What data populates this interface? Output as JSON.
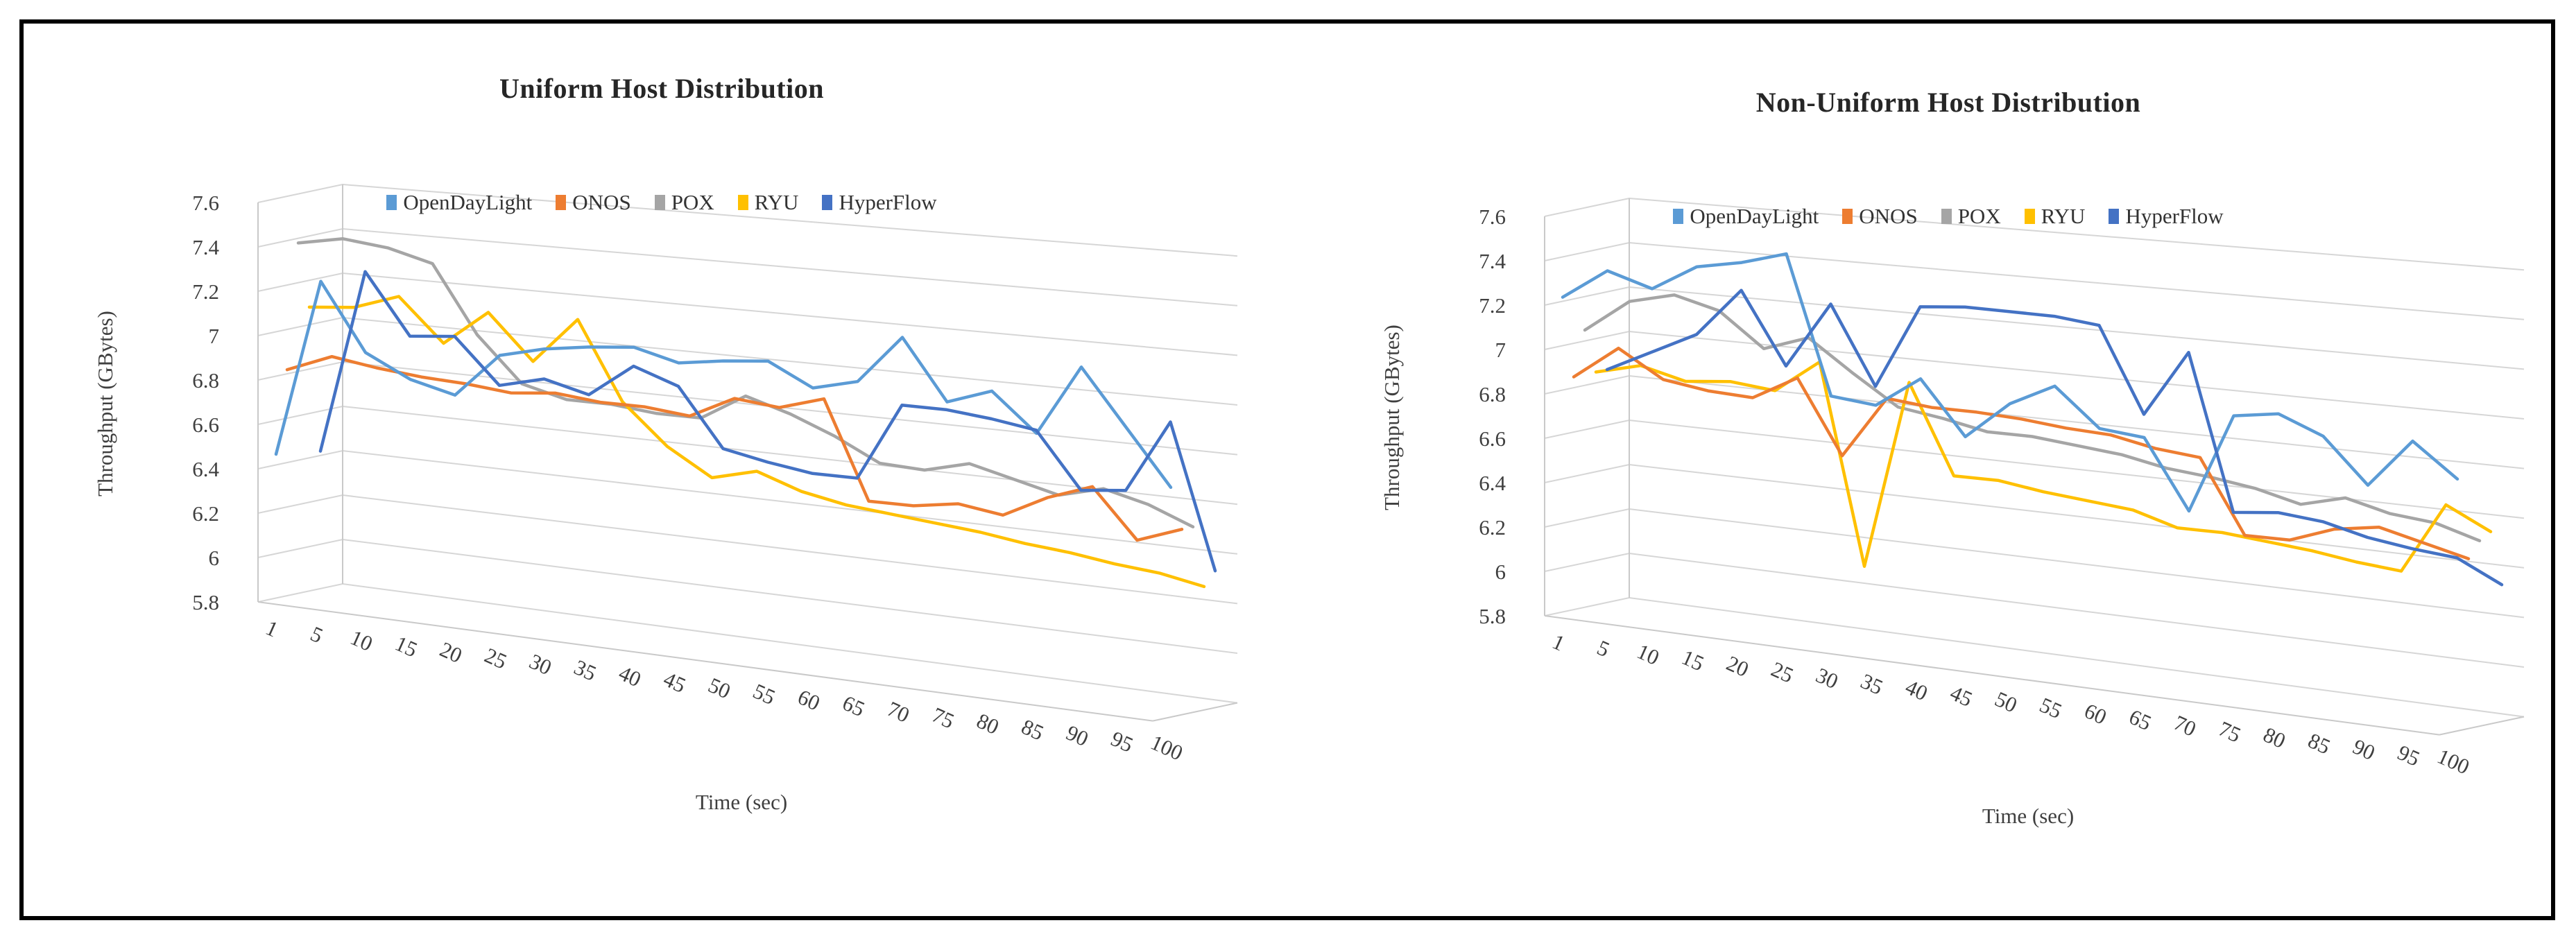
{
  "page": {
    "background": "#ffffff",
    "frame_border_color": "#000000",
    "text_color": "#3f3f3f",
    "title_color": "#262626",
    "gridline_color": "#d6d6d6",
    "wall_edge_color": "#c9c9c9"
  },
  "chart_data": [
    {
      "type": "line",
      "style": "3d-oblique",
      "title": "Uniform Host Distribution",
      "xlabel": "Time (sec)",
      "ylabel": "Throughput (GBytes)",
      "ylim": [
        5.8,
        7.6
      ],
      "y_tick_step": 0.2,
      "y_tick_labels": [
        "7.6",
        "7.4",
        "7.2",
        "7",
        "6.8",
        "6.6",
        "6.4",
        "6.2",
        "6",
        "5.8"
      ],
      "grid": true,
      "legend_position": "top",
      "categories": [
        1,
        5,
        10,
        15,
        20,
        25,
        30,
        35,
        40,
        45,
        50,
        55,
        60,
        65,
        70,
        75,
        80,
        85,
        90,
        95,
        100
      ],
      "series": [
        {
          "name": "OpenDayLight",
          "color": "#5B9BD5",
          "values": [
            6.45,
            7.25,
            6.95,
            6.85,
            6.8,
            7.0,
            7.05,
            7.08,
            7.1,
            7.05,
            7.08,
            7.1,
            7.0,
            7.05,
            7.27,
            7.0,
            7.07,
            6.9,
            7.22,
            6.97,
            6.72
          ]
        },
        {
          "name": "ONOS",
          "color": "#ED7D31",
          "values": [
            6.82,
            6.9,
            6.87,
            6.85,
            6.84,
            6.82,
            6.84,
            6.82,
            6.82,
            6.8,
            6.9,
            6.88,
            6.94,
            6.5,
            6.5,
            6.53,
            6.5,
            6.6,
            6.67,
            6.45,
            6.52
          ]
        },
        {
          "name": "POX",
          "color": "#A5A5A5",
          "values": [
            7.38,
            7.42,
            7.4,
            7.35,
            7.05,
            6.85,
            6.8,
            6.8,
            6.78,
            6.78,
            6.9,
            6.84,
            6.76,
            6.66,
            6.65,
            6.7,
            6.65,
            6.6,
            6.65,
            6.6,
            6.52
          ]
        },
        {
          "name": "RYU",
          "color": "#FFC000",
          "values": [
            7.08,
            7.1,
            7.17,
            6.98,
            7.14,
            6.94,
            7.15,
            6.8,
            6.62,
            6.5,
            6.55,
            6.48,
            6.44,
            6.42,
            6.4,
            6.38,
            6.35,
            6.33,
            6.3,
            6.28,
            6.24
          ]
        },
        {
          "name": "HyperFlow",
          "color": "#4472C4",
          "values": [
            6.42,
            7.25,
            6.98,
            7.0,
            6.8,
            6.85,
            6.8,
            6.95,
            6.88,
            6.62,
            6.58,
            6.55,
            6.55,
            6.9,
            6.9,
            6.88,
            6.85,
            6.6,
            6.62,
            6.95,
            6.3
          ]
        }
      ]
    },
    {
      "type": "line",
      "style": "3d-oblique",
      "title": "Non-Uniform Host Distribution",
      "xlabel": "Time (sec)",
      "ylabel": "Throughput (GBytes)",
      "ylim": [
        5.8,
        7.6
      ],
      "y_tick_step": 0.2,
      "y_tick_labels": [
        "7.6",
        "7.4",
        "7.2",
        "7",
        "6.8",
        "6.6",
        "6.4",
        "6.2",
        "6",
        "5.8"
      ],
      "grid": true,
      "legend_position": "top",
      "categories": [
        1,
        5,
        10,
        15,
        20,
        25,
        30,
        35,
        40,
        45,
        50,
        55,
        60,
        65,
        70,
        75,
        80,
        85,
        90,
        95,
        100
      ],
      "series": [
        {
          "name": "OpenDayLight",
          "color": "#5B9BD5",
          "values": [
            7.22,
            7.36,
            7.3,
            7.42,
            7.46,
            7.52,
            6.9,
            6.88,
            7.02,
            6.78,
            6.95,
            7.05,
            6.88,
            6.86,
            6.55,
            7.0,
            7.03,
            6.95,
            6.75,
            6.97,
            6.82
          ]
        },
        {
          "name": "ONOS",
          "color": "#ED7D31",
          "values": [
            6.85,
            7.0,
            6.88,
            6.85,
            6.84,
            6.95,
            6.62,
            6.9,
            6.88,
            6.88,
            6.87,
            6.85,
            6.84,
            6.8,
            6.78,
            6.45,
            6.45,
            6.52,
            6.55,
            6.5,
            6.45
          ]
        },
        {
          "name": "POX",
          "color": "#A5A5A5",
          "values": [
            7.05,
            7.2,
            7.25,
            7.2,
            7.05,
            7.12,
            6.98,
            6.85,
            6.82,
            6.78,
            6.78,
            6.76,
            6.74,
            6.7,
            6.68,
            6.65,
            6.6,
            6.65,
            6.6,
            6.58,
            6.52
          ]
        },
        {
          "name": "RYU",
          "color": "#FFC000",
          "values": [
            6.85,
            6.9,
            6.85,
            6.87,
            6.85,
            7.0,
            6.1,
            6.95,
            6.55,
            6.55,
            6.52,
            6.5,
            6.48,
            6.42,
            6.42,
            6.4,
            6.38,
            6.35,
            6.33,
            6.65,
            6.55
          ]
        },
        {
          "name": "HyperFlow",
          "color": "#4472C4",
          "values": [
            6.85,
            6.95,
            7.05,
            7.27,
            6.95,
            7.25,
            6.9,
            7.28,
            7.3,
            7.3,
            7.3,
            7.28,
            6.9,
            7.2,
            6.5,
            6.52,
            6.5,
            6.45,
            6.42,
            6.4,
            6.3
          ]
        }
      ]
    }
  ]
}
